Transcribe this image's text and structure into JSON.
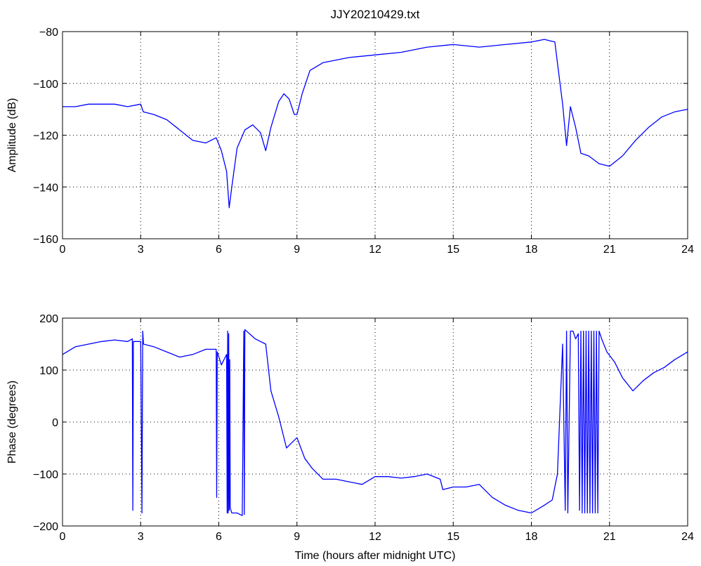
{
  "figure": {
    "title": "JJY20210429.txt",
    "line_color": "#0000ff"
  },
  "chart_data": [
    {
      "type": "line",
      "title": "JJY20210429.txt",
      "xlabel": "",
      "ylabel": "Amplitude (dB)",
      "xlim": [
        0,
        24
      ],
      "ylim": [
        -160,
        -80
      ],
      "xticks": [
        0,
        3,
        6,
        9,
        12,
        15,
        18,
        21,
        24
      ],
      "yticks": [
        -160,
        -140,
        -120,
        -100,
        -80
      ],
      "grid": true,
      "series": [
        {
          "color": "#0000ff",
          "x": [
            0,
            0.5,
            1.0,
            1.5,
            2.0,
            2.5,
            3.0,
            3.1,
            3.5,
            4.0,
            4.5,
            5.0,
            5.5,
            5.9,
            6.1,
            6.3,
            6.4,
            6.5,
            6.7,
            7.0,
            7.3,
            7.6,
            7.8,
            8.0,
            8.3,
            8.5,
            8.7,
            8.9,
            9.0,
            9.2,
            9.5,
            10.0,
            11.0,
            12.0,
            13.0,
            14.0,
            15.0,
            16.0,
            17.0,
            18.0,
            18.5,
            18.9,
            19.0,
            19.1,
            19.2,
            19.35,
            19.5,
            19.7,
            19.9,
            20.2,
            20.6,
            21.0,
            21.5,
            22.0,
            22.5,
            23.0,
            23.5,
            24.0
          ],
          "y": [
            -109,
            -109,
            -108,
            -108,
            -108,
            -109,
            -108,
            -111,
            -112,
            -114,
            -118,
            -122,
            -123,
            -121,
            -126,
            -134,
            -148,
            -140,
            -125,
            -118,
            -116,
            -119,
            -126,
            -117,
            -107,
            -104,
            -106,
            -112,
            -112,
            -104,
            -95,
            -92,
            -90,
            -89,
            -88,
            -86,
            -85,
            -86,
            -85,
            -84,
            -83,
            -84,
            -92,
            -100,
            -108,
            -124,
            -109,
            -117,
            -127,
            -128,
            -131,
            -132,
            -128,
            -122,
            -117,
            -113,
            -111,
            -110
          ]
        }
      ]
    },
    {
      "type": "line",
      "title": "",
      "xlabel": "Time (hours after midnight UTC)",
      "ylabel": "Phase (degrees)",
      "xlim": [
        0,
        24
      ],
      "ylim": [
        -200,
        200
      ],
      "xticks": [
        0,
        3,
        6,
        9,
        12,
        15,
        18,
        21,
        24
      ],
      "yticks": [
        -200,
        -100,
        0,
        100,
        200
      ],
      "grid": true,
      "series": [
        {
          "color": "#0000ff",
          "x": [
            0,
            0.5,
            1.0,
            1.5,
            2.0,
            2.5,
            2.68,
            2.7,
            2.72,
            3.0,
            3.05,
            3.08,
            3.11,
            3.5,
            4.0,
            4.5,
            5.0,
            5.5,
            5.9,
            5.92,
            5.94,
            6.1,
            6.3,
            6.32,
            6.34,
            6.36,
            6.38,
            6.4,
            6.42,
            6.44,
            6.5,
            6.7,
            6.9,
            6.96,
            6.98,
            7.0,
            7.4,
            7.8,
            8.0,
            8.3,
            8.6,
            8.8,
            9.0,
            9.3,
            9.6,
            10.0,
            10.5,
            11.0,
            11.5,
            12.0,
            12.5,
            13.0,
            13.5,
            14.0,
            14.5,
            14.6,
            15.0,
            15.5,
            16.0,
            16.5,
            17.0,
            17.5,
            18.0,
            18.5,
            18.8,
            19.0,
            19.2,
            19.3,
            19.35,
            19.4,
            19.5,
            19.6,
            19.7,
            19.8,
            19.85,
            19.9,
            19.95,
            20.0,
            20.05,
            20.1,
            20.15,
            20.2,
            20.25,
            20.3,
            20.35,
            20.4,
            20.45,
            20.5,
            20.55,
            20.6,
            20.7,
            20.9,
            21.2,
            21.5,
            21.9,
            22.3,
            22.7,
            23.1,
            23.5,
            24.0
          ],
          "y": [
            130,
            145,
            150,
            155,
            158,
            155,
            160,
            -170,
            155,
            155,
            -175,
            175,
            150,
            145,
            135,
            125,
            130,
            140,
            140,
            -145,
            135,
            110,
            130,
            -175,
            175,
            -175,
            170,
            -170,
            120,
            -165,
            -175,
            -175,
            -180,
            175,
            -178,
            178,
            160,
            150,
            60,
            10,
            -50,
            -40,
            -30,
            -70,
            -90,
            -110,
            -110,
            -115,
            -120,
            -105,
            -105,
            -108,
            -105,
            -100,
            -110,
            -130,
            -125,
            -125,
            -120,
            -145,
            -160,
            -170,
            -175,
            -160,
            -150,
            -100,
            150,
            -170,
            175,
            -175,
            175,
            175,
            160,
            170,
            -170,
            175,
            -175,
            175,
            -175,
            175,
            -175,
            175,
            -175,
            175,
            -175,
            175,
            -175,
            175,
            -175,
            175,
            160,
            135,
            115,
            85,
            60,
            80,
            95,
            105,
            120,
            135
          ]
        }
      ]
    }
  ]
}
